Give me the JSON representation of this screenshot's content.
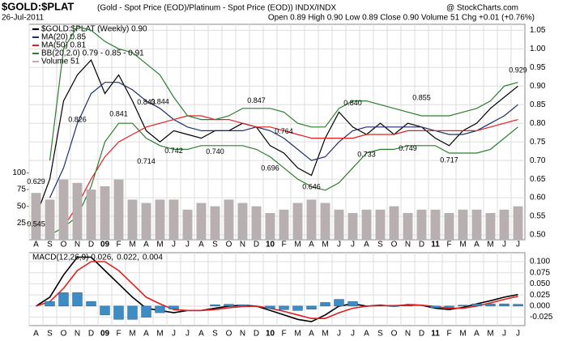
{
  "chart_data": [
    {
      "type": "line",
      "title": "$GOLD:$PLAT",
      "subtitle": "(Gold - Spot Price (EOD)/Platinum  - Spot Price (EOD))  INDX/INDX",
      "date": "26-Jul-2011",
      "quote": "Open 0.89  High 0.90  Low 0.89  Close 0.90  Volume 51  Chg +0.01 (+0.76%)",
      "source": "@ StockCharts.com",
      "categories": [
        "A",
        "S",
        "O",
        "N",
        "D",
        "09",
        "F",
        "M",
        "A",
        "M",
        "J",
        "J",
        "A",
        "S",
        "O",
        "N",
        "D",
        "10",
        "F",
        "M",
        "A",
        "M",
        "J",
        "J",
        "A",
        "S",
        "O",
        "N",
        "D",
        "11",
        "F",
        "M",
        "A",
        "M",
        "J",
        "J"
      ],
      "ylim": [
        0.487,
        1.066
      ],
      "yticks": [
        {
          "value": 0.5,
          "label": "0.50"
        },
        0.55,
        {
          "value": 0.6,
          "label": "0.60"
        },
        0.65,
        {
          "value": 0.7,
          "label": "0.70"
        },
        0.75,
        {
          "value": 0.8,
          "label": "0.80"
        },
        0.85,
        {
          "value": 0.9,
          "label": "0.90"
        },
        0.95,
        {
          "value": 1,
          "label": "1.00"
        },
        1.05
      ],
      "y2lim": [
        0,
        322
      ],
      "y2ticks": [
        25,
        50,
        75,
        100
      ],
      "grid": true,
      "series": [
        {
          "name": "$GOLD:$PLAT (Weekly) 0.90",
          "color": "#000000",
          "values": [
            0.55,
            0.65,
            0.86,
            0.93,
            0.97,
            0.88,
            0.93,
            0.86,
            0.78,
            0.75,
            0.78,
            0.77,
            0.76,
            0.78,
            0.78,
            0.8,
            0.79,
            0.74,
            0.72,
            0.68,
            0.66,
            0.76,
            0.83,
            0.79,
            0.77,
            0.8,
            0.77,
            0.8,
            0.79,
            0.76,
            0.74,
            0.78,
            0.8,
            0.84,
            0.87,
            0.9
          ]
        },
        {
          "name": "MA(20) 0.85",
          "color": "#1f2f6b",
          "values": [
            null,
            0.6,
            0.68,
            0.8,
            0.88,
            0.91,
            0.91,
            0.89,
            0.86,
            0.84,
            0.81,
            0.79,
            0.78,
            0.78,
            0.78,
            0.78,
            0.79,
            0.78,
            0.76,
            0.73,
            0.7,
            0.71,
            0.75,
            0.78,
            0.79,
            0.79,
            0.79,
            0.79,
            0.79,
            0.78,
            0.77,
            0.77,
            0.78,
            0.8,
            0.82,
            0.85
          ]
        },
        {
          "name": "MA(50) 0.81",
          "color": "#e02020",
          "values": [
            null,
            null,
            0.52,
            0.58,
            0.65,
            0.71,
            0.75,
            0.77,
            0.79,
            0.8,
            0.81,
            0.82,
            0.82,
            0.81,
            0.81,
            0.8,
            0.79,
            0.79,
            0.78,
            0.77,
            0.76,
            0.76,
            0.76,
            0.76,
            0.77,
            0.77,
            0.77,
            0.78,
            0.78,
            0.78,
            0.78,
            0.78,
            0.78,
            0.79,
            0.8,
            0.81
          ]
        },
        {
          "name": "BB(20,2.0) 0.79 - 0.85 - 0.91",
          "color": "#2e7d2e",
          "values": [
            null,
            0.7,
            1.0,
            1.06,
            1.05,
            1.02,
            1.0,
            0.99,
            0.96,
            0.93,
            0.87,
            0.82,
            0.81,
            0.81,
            0.82,
            0.84,
            0.84,
            0.84,
            0.83,
            0.8,
            0.79,
            0.79,
            0.84,
            0.86,
            0.86,
            0.85,
            0.84,
            0.83,
            0.82,
            0.82,
            0.82,
            0.83,
            0.84,
            0.86,
            0.9,
            0.91
          ]
        },
        {
          "color": "#2e7d2e",
          "values": [
            null,
            0.5,
            0.52,
            0.55,
            0.63,
            0.75,
            0.8,
            0.8,
            0.76,
            0.74,
            0.73,
            0.73,
            0.74,
            0.74,
            0.74,
            0.74,
            0.73,
            0.71,
            0.68,
            0.65,
            0.63,
            0.62,
            0.64,
            0.68,
            0.72,
            0.73,
            0.73,
            0.74,
            0.74,
            0.74,
            0.72,
            0.72,
            0.72,
            0.73,
            0.76,
            0.79
          ]
        },
        {
          "name": "Volume 51",
          "type": "bar",
          "axis": "y2",
          "color": "#b8b0b0",
          "values": [
            70,
            60,
            90,
            85,
            75,
            80,
            90,
            60,
            55,
            60,
            60,
            45,
            55,
            50,
            60,
            55,
            50,
            40,
            45,
            55,
            60,
            55,
            45,
            40,
            45,
            45,
            50,
            40,
            45,
            45,
            40,
            45,
            45,
            40,
            45,
            50
          ]
        }
      ],
      "annotations": [
        {
          "x": 0,
          "value": 0.629,
          "label": "0.629"
        },
        {
          "x": 0,
          "value": 0.545,
          "label": "0.545"
        },
        {
          "x": 3,
          "value": 0.826,
          "label": "0.826"
        },
        {
          "x": 6,
          "value": 0.841,
          "label": "0.841"
        },
        {
          "x": 8,
          "value": 0.843,
          "label": "0.843"
        },
        {
          "x": 9,
          "value": 0.844,
          "label": "0.844"
        },
        {
          "x": 8,
          "value": 0.714,
          "label": "0.714"
        },
        {
          "x": 10,
          "value": 0.742,
          "label": "0.742"
        },
        {
          "x": 13,
          "value": 0.74,
          "label": "0.740"
        },
        {
          "x": 16,
          "value": 0.847,
          "label": "0.847"
        },
        {
          "x": 18,
          "value": 0.764,
          "label": "0.764"
        },
        {
          "x": 17,
          "value": 0.696,
          "label": "0.696"
        },
        {
          "x": 20,
          "value": 0.646,
          "label": "0.646"
        },
        {
          "x": 23,
          "value": 0.84,
          "label": "0.840"
        },
        {
          "x": 24,
          "value": 0.733,
          "label": "0.733"
        },
        {
          "x": 28,
          "value": 0.855,
          "label": "0.855"
        },
        {
          "x": 27,
          "value": 0.749,
          "label": "0.749"
        },
        {
          "x": 30,
          "value": 0.717,
          "label": "0.717"
        },
        {
          "x": 35,
          "value": 0.929,
          "label": "0.929"
        }
      ]
    },
    {
      "type": "line",
      "categories": [
        "A",
        "S",
        "O",
        "N",
        "D",
        "09",
        "F",
        "M",
        "A",
        "M",
        "J",
        "J",
        "A",
        "S",
        "O",
        "N",
        "D",
        "10",
        "F",
        "M",
        "A",
        "M",
        "J",
        "J",
        "A",
        "S",
        "O",
        "N",
        "D",
        "11",
        "F",
        "M",
        "A",
        "M",
        "J",
        "J"
      ],
      "ylim": [
        -0.044,
        0.12
      ],
      "yticks": [
        {
          "value": 0.1,
          "label": "0.100"
        },
        0.075,
        {
          "value": 0.05,
          "label": "0.050"
        },
        0.025,
        {
          "value": 0,
          "label": "0.000"
        },
        -0.025
      ],
      "grid": true,
      "series": [
        {
          "name": "MACD(12,26,9) 0.026,",
          "color": "#000000",
          "values": [
            0,
            0.02,
            0.07,
            0.11,
            0.11,
            0.08,
            0.05,
            0.02,
            -0.005,
            -0.01,
            -0.015,
            -0.01,
            -0.01,
            -0.005,
            0,
            0.002,
            0,
            -0.01,
            -0.02,
            -0.03,
            -0.035,
            -0.02,
            0,
            0.005,
            0,
            0.002,
            0,
            0.003,
            0.002,
            -0.005,
            -0.008,
            -0.003,
            0.005,
            0.012,
            0.02,
            0.026
          ]
        },
        {
          "name": "0.022,",
          "color": "#e02020",
          "values": [
            0,
            0.01,
            0.04,
            0.08,
            0.1,
            0.1,
            0.08,
            0.05,
            0.02,
            0.005,
            -0.008,
            -0.01,
            -0.01,
            -0.008,
            -0.004,
            -0.001,
            0,
            -0.005,
            -0.012,
            -0.02,
            -0.028,
            -0.028,
            -0.015,
            -0.005,
            0,
            0.001,
            0.001,
            0.002,
            0.002,
            -0.001,
            -0.005,
            -0.005,
            0,
            0.007,
            0.015,
            0.022
          ]
        },
        {
          "name": "0.004",
          "type": "bar",
          "color": "#3d8cc4",
          "values": [
            0,
            0.01,
            0.03,
            0.03,
            0.01,
            -0.02,
            -0.03,
            -0.03,
            -0.025,
            -0.015,
            -0.007,
            0,
            0,
            0.003,
            0.004,
            0.003,
            0,
            -0.005,
            -0.008,
            -0.01,
            -0.007,
            0.008,
            0.015,
            0.01,
            0,
            0.001,
            -0.001,
            0.001,
            0,
            -0.004,
            -0.003,
            0.002,
            0.005,
            0.005,
            0.005,
            0.004
          ]
        }
      ]
    }
  ]
}
